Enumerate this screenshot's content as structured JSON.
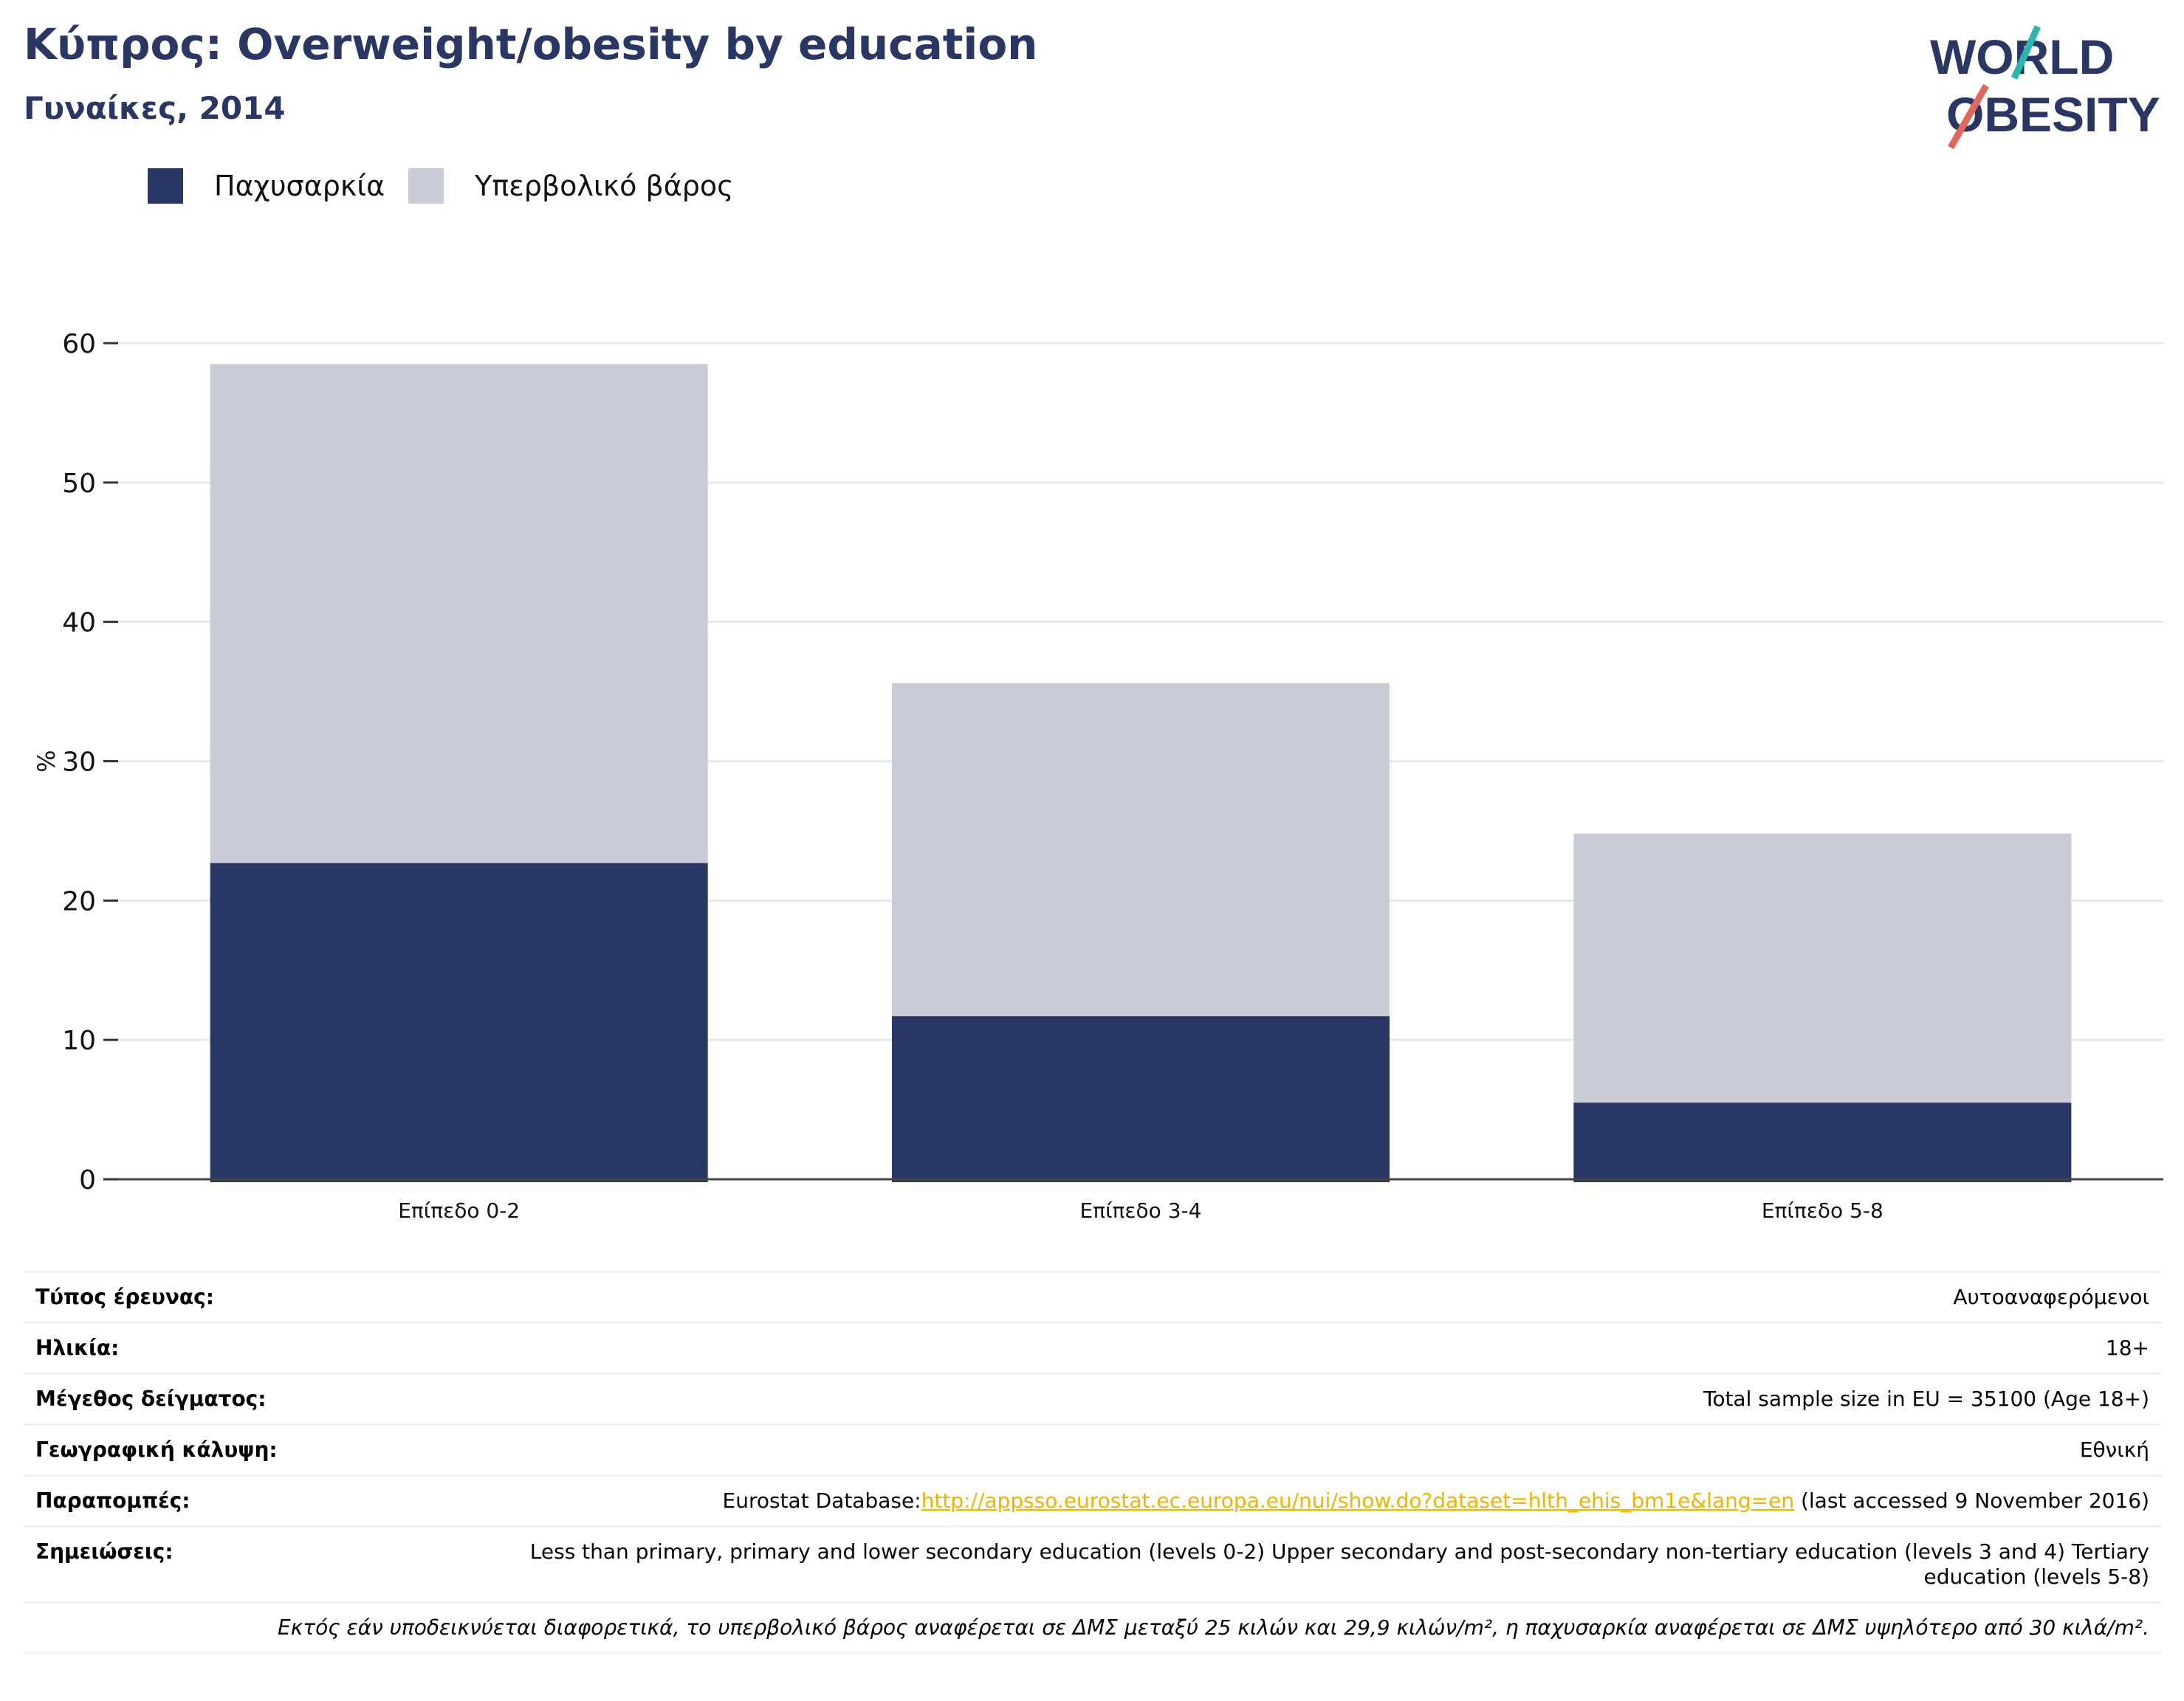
{
  "header": {
    "title": "Κύπρος: Overweight/obesity by education",
    "subtitle": "Γυναίκες, 2014"
  },
  "logo": {
    "line1": "WORLD",
    "line2": "OBESITY"
  },
  "colors": {
    "obesity": "#2a3663",
    "overweight": "#c9cbd7",
    "accent_teal": "#2bb5b0",
    "accent_red": "#e0685a"
  },
  "chart_data": {
    "type": "bar",
    "stacked": true,
    "categories": [
      "Επίπεδο 0-2",
      "Επίπεδο 3-4",
      "Επίπεδο 5-8"
    ],
    "series": [
      {
        "name": "Παχυσαρκία",
        "values": [
          22.7,
          11.7,
          5.5
        ]
      },
      {
        "name": "Υπερβολικό βάρος",
        "values": [
          35.8,
          23.9,
          19.3
        ]
      }
    ],
    "ylabel": "%",
    "xlabel": "",
    "ylim": [
      0,
      60
    ],
    "yticks": [
      0,
      10,
      20,
      30,
      40,
      50,
      60
    ],
    "grid": true,
    "legend": "top-left"
  },
  "info": {
    "rows": [
      {
        "key": "Τύπος έρευνας:",
        "value": "Αυτοαναφερόμενοι"
      },
      {
        "key": "Ηλικία:",
        "value": "18+"
      },
      {
        "key": "Μέγεθος δείγματος:",
        "value": "Total sample size in EU = 35100 (Age 18+)"
      },
      {
        "key": "Γεωγραφική κάλυψη:",
        "value": "Εθνική"
      }
    ],
    "refs": {
      "key": "Παραπομπές:",
      "prefix": "Eurostat Database:",
      "link": "http://appsso.eurostat.ec.europa.eu/nui/show.do?dataset=hlth_ehis_bm1e&lang=en",
      "suffix": " (last accessed 9 November 2016)"
    },
    "notes": {
      "key": "Σημειώσεις:",
      "value": "Less than primary, primary and lower secondary education (levels 0-2) Upper secondary and post-secondary non-tertiary education (levels 3 and 4) Tertiary education (levels 5-8)"
    },
    "footnote": "Εκτός εάν υποδεικνύεται διαφορετικά, το υπερβολικό βάρος αναφέρεται σε ΔΜΣ μεταξύ 25 κιλών και 29,9 κιλών/m², η παχυσαρκία αναφέρεται σε ΔΜΣ υψηλότερο από 30 κιλά/m²."
  }
}
